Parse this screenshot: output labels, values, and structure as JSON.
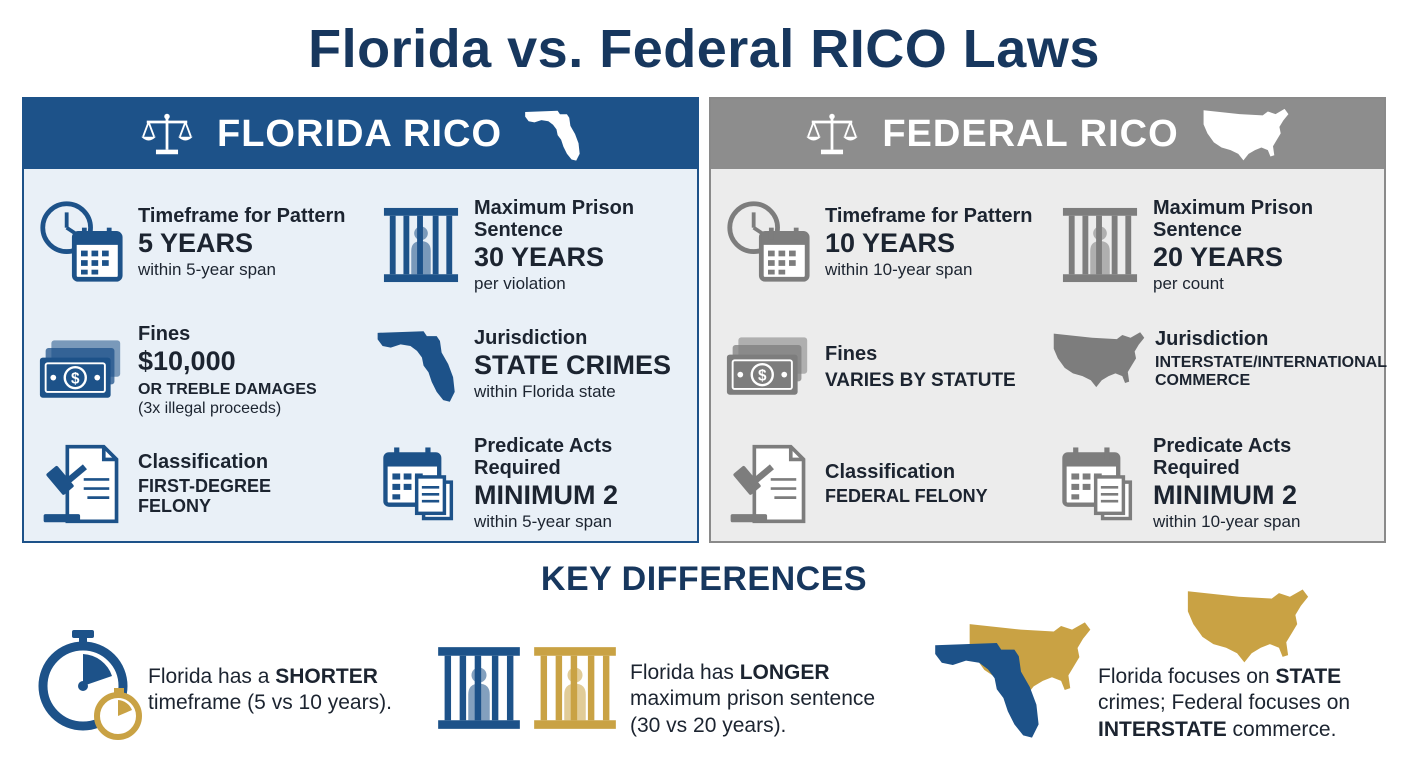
{
  "title": "Florida vs. Federal RICO Laws",
  "colors": {
    "florida": "#1d5289",
    "federal": "#8d8d8d",
    "gold": "#c9a244",
    "title": "#17375e"
  },
  "florida": {
    "heading": "FLORIDA RICO",
    "heading_icons": [
      "scales-icon",
      "florida-map-icon"
    ],
    "timeframe": {
      "label": "Timeframe for Pattern",
      "value": "5 YEARS",
      "note": "within 5-year span",
      "icon": "clock-calendar-icon"
    },
    "prison": {
      "label_1": "Maximum Prison",
      "label_2": "Sentence",
      "value": "30 YEARS",
      "note": "per violation",
      "icon": "prison-bars-icon"
    },
    "fines": {
      "label": "Fines",
      "value": "$10,000",
      "value_2": "OR TREBLE DAMAGES",
      "note": "(3x illegal proceeds)",
      "icon": "money-icon"
    },
    "jurisdiction": {
      "label": "Jurisdiction",
      "value": "STATE CRIMES",
      "note": "within Florida state",
      "icon": "florida-map-icon"
    },
    "classification": {
      "label": "Classification",
      "value_1": "FIRST-DEGREE",
      "value_2": "FELONY",
      "icon": "gavel-document-icon"
    },
    "predicate": {
      "label_1": "Predicate Acts",
      "label_2": "Required",
      "value": "MINIMUM 2",
      "note": "within 5-year span",
      "icon": "calendar-documents-icon"
    }
  },
  "federal": {
    "heading": "FEDERAL RICO",
    "heading_icons": [
      "scales-icon",
      "usa-map-icon"
    ],
    "timeframe": {
      "label": "Timeframe for Pattern",
      "value": "10 YEARS",
      "note": "within 10-year span",
      "icon": "clock-calendar-icon"
    },
    "prison": {
      "label_1": "Maximum Prison",
      "label_2": "Sentence",
      "value": "20 YEARS",
      "note": "per count",
      "icon": "prison-bars-icon"
    },
    "fines": {
      "label": "Fines",
      "value": "VARIES BY STATUTE",
      "icon": "money-icon"
    },
    "jurisdiction": {
      "label": "Jurisdiction",
      "value_1": "INTERSTATE/INTERNATIONAL",
      "value_2": "COMMERCE",
      "icon": "usa-map-icon"
    },
    "classification": {
      "label": "Classification",
      "value": "FEDERAL FELONY",
      "icon": "gavel-document-icon"
    },
    "predicate": {
      "label_1": "Predicate Acts",
      "label_2": "Required",
      "value": "MINIMUM 2",
      "note": "within 10-year span",
      "icon": "calendar-documents-icon"
    }
  },
  "key_differences": {
    "title": "KEY DIFFERENCES",
    "items": [
      {
        "icon": "stopwatch-icon",
        "pre": "Florida has a ",
        "strong": "SHORTER",
        "post": "timeframe (5 vs 10 years)."
      },
      {
        "icon": "prison-bars-pair-icon",
        "pre": "Florida has ",
        "strong": "LONGER",
        "post": "maximum prison sentence (30 vs 20 years)."
      },
      {
        "icon": "florida-usa-map-icon",
        "pre": "Florida focuses on ",
        "strong": "STATE",
        "mid": "crimes; Federal focuses on",
        "strong_2": "INTERSTATE",
        "post": " commerce."
      }
    ]
  }
}
